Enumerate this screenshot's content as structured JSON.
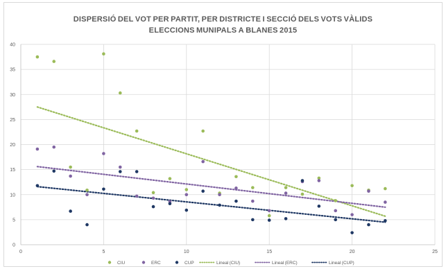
{
  "chart_data": {
    "type": "scatter",
    "title_line1": "DISPERSIÓ DEL VOT PER PARTIT, PER DISTRICTE I SECCIÓ DELS VOTS VÀLIDS",
    "title_line2": "ELECCIONS MUNIPALS A BLANES 2015",
    "xlim": [
      0,
      25
    ],
    "ylim": [
      0,
      40
    ],
    "x_ticks": [
      0,
      5,
      10,
      15,
      20,
      25
    ],
    "y_ticks": [
      0,
      5,
      10,
      15,
      20,
      25,
      30,
      35,
      40
    ],
    "grid": true,
    "legend_position": "bottom",
    "series": [
      {
        "name": "CIU",
        "color": "#9bbb59",
        "points": [
          [
            1,
            37.5
          ],
          [
            2,
            36.6
          ],
          [
            3,
            15.5
          ],
          [
            4,
            10.9
          ],
          [
            5,
            38.1
          ],
          [
            6,
            30.3
          ],
          [
            7,
            22.7
          ],
          [
            8,
            10.4
          ],
          [
            9,
            13.2
          ],
          [
            10,
            11.0
          ],
          [
            11,
            22.7
          ],
          [
            12,
            10.3
          ],
          [
            13,
            13.6
          ],
          [
            14,
            11.4
          ],
          [
            15,
            5.8
          ],
          [
            16,
            11.4
          ],
          [
            17,
            10.1
          ],
          [
            18,
            13.3
          ],
          [
            19,
            8.8
          ],
          [
            20,
            11.8
          ],
          [
            21,
            10.9
          ],
          [
            22,
            11.2
          ]
        ]
      },
      {
        "name": "ERC",
        "color": "#8064a2",
        "points": [
          [
            1,
            19.1
          ],
          [
            2,
            19.5
          ],
          [
            3,
            13.7
          ],
          [
            4,
            10.0
          ],
          [
            5,
            18.2
          ],
          [
            6,
            15.5
          ],
          [
            7,
            9.7
          ],
          [
            8,
            9.3
          ],
          [
            9,
            8.6
          ],
          [
            10,
            10.0
          ],
          [
            11,
            16.6
          ],
          [
            12,
            10.0
          ],
          [
            13,
            11.3
          ],
          [
            14,
            8.7
          ],
          [
            15,
            6.8
          ],
          [
            16,
            10.3
          ],
          [
            17,
            12.6
          ],
          [
            18,
            12.8
          ],
          [
            19,
            6.8
          ],
          [
            20,
            6.0
          ],
          [
            21,
            10.7
          ],
          [
            22,
            8.5
          ]
        ]
      },
      {
        "name": "CUP",
        "color": "#1f3864",
        "points": [
          [
            1,
            11.8
          ],
          [
            2,
            14.7
          ],
          [
            3,
            6.7
          ],
          [
            4,
            4.0
          ],
          [
            5,
            11.1
          ],
          [
            6,
            14.6
          ],
          [
            7,
            14.6
          ],
          [
            8,
            7.6
          ],
          [
            9,
            8.2
          ],
          [
            10,
            6.9
          ],
          [
            11,
            10.7
          ],
          [
            12,
            7.9
          ],
          [
            13,
            8.7
          ],
          [
            14,
            5.0
          ],
          [
            15,
            4.9
          ],
          [
            16,
            5.2
          ],
          [
            17,
            12.8
          ],
          [
            18,
            7.7
          ],
          [
            19,
            5.0
          ],
          [
            20,
            2.4
          ],
          [
            21,
            4.0
          ],
          [
            22,
            4.8
          ]
        ]
      }
    ],
    "trendlines": [
      {
        "name": "Lineal (CIU)",
        "color": "#9bbb59",
        "from": [
          1,
          27.5
        ],
        "to": [
          22,
          5.7
        ]
      },
      {
        "name": "Lineal (ERC)",
        "color": "#8064a2",
        "from": [
          1,
          15.6
        ],
        "to": [
          22,
          7.5
        ]
      },
      {
        "name": "Lineal (CUP)",
        "color": "#1f3864",
        "from": [
          1,
          11.6
        ],
        "to": [
          22,
          4.5
        ]
      }
    ]
  }
}
